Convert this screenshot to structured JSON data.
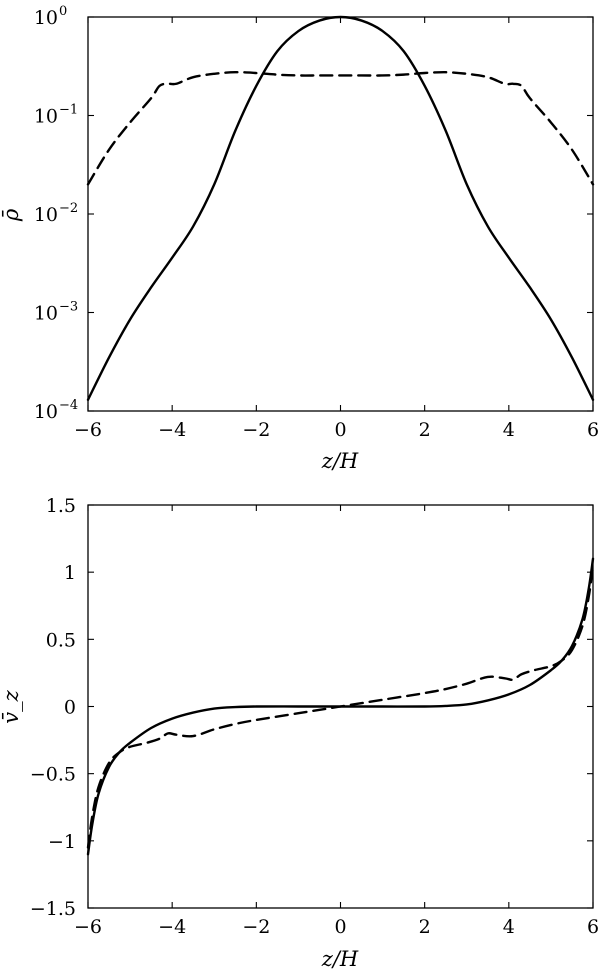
{
  "chart_data": [
    {
      "type": "line",
      "xlabel": "z/H",
      "ylabel": "ρ̄",
      "xlim": [
        -6,
        6
      ],
      "ylim": [
        0.0001,
        1
      ],
      "yscale": "log",
      "grid": false,
      "xticks": [
        -6,
        -4,
        -2,
        0,
        2,
        4,
        6
      ],
      "xtick_labels": [
        "−6",
        "−4",
        "−2",
        "0",
        "2",
        "4",
        "6"
      ],
      "yticks": [
        0.0001,
        0.001,
        0.01,
        0.1,
        1
      ],
      "ytick_mantissa": [
        "10",
        "10",
        "10",
        "10",
        "10"
      ],
      "ytick_exponents": [
        "−4",
        "−3",
        "−2",
        "−1",
        "0"
      ],
      "series": [
        {
          "style": "solid",
          "color": "#000000",
          "x": [
            -6,
            -5.5,
            -5,
            -4.5,
            -4,
            -3.5,
            -3,
            -2.5,
            -2,
            -1.5,
            -1,
            -0.5,
            0,
            0.5,
            1,
            1.5,
            2,
            2.5,
            3,
            3.5,
            4,
            4.5,
            5,
            5.5,
            6
          ],
          "y": [
            0.00013,
            0.00035,
            0.00085,
            0.0018,
            0.0036,
            0.0075,
            0.02,
            0.07,
            0.2,
            0.45,
            0.72,
            0.92,
            1.0,
            0.92,
            0.72,
            0.45,
            0.2,
            0.07,
            0.02,
            0.0075,
            0.0036,
            0.0018,
            0.00085,
            0.00035,
            0.00013
          ]
        },
        {
          "style": "dashed",
          "color": "#000000",
          "x": [
            -6,
            -5.5,
            -5,
            -4.5,
            -4.3,
            -4.1,
            -3.9,
            -3.5,
            -3,
            -2.5,
            -2,
            -1.5,
            -1,
            -0.5,
            0,
            0.5,
            1,
            1.5,
            2,
            2.5,
            3,
            3.5,
            3.9,
            4.1,
            4.3,
            4.5,
            5,
            5.5,
            6
          ],
          "y": [
            0.02,
            0.045,
            0.085,
            0.15,
            0.2,
            0.21,
            0.21,
            0.245,
            0.265,
            0.275,
            0.27,
            0.26,
            0.255,
            0.255,
            0.255,
            0.255,
            0.255,
            0.26,
            0.27,
            0.275,
            0.265,
            0.245,
            0.21,
            0.21,
            0.2,
            0.15,
            0.085,
            0.045,
            0.02
          ]
        }
      ]
    },
    {
      "type": "line",
      "xlabel": "z/H",
      "ylabel": "v̄_z",
      "xlim": [
        -6,
        6
      ],
      "ylim": [
        -1.5,
        1.5
      ],
      "yscale": "linear",
      "grid": false,
      "xticks": [
        -6,
        -4,
        -2,
        0,
        2,
        4,
        6
      ],
      "xtick_labels": [
        "−6",
        "−4",
        "−2",
        "0",
        "2",
        "4",
        "6"
      ],
      "yticks": [
        -1.5,
        -1,
        -0.5,
        0,
        0.5,
        1,
        1.5
      ],
      "ytick_labels": [
        "−1.5",
        "−1",
        "−0.5",
        "0",
        "0.5",
        "1",
        "1.5"
      ],
      "series": [
        {
          "style": "solid",
          "color": "#000000",
          "x": [
            -6,
            -5.9,
            -5.75,
            -5.5,
            -5.25,
            -5,
            -4.5,
            -4,
            -3.5,
            -3,
            -2.5,
            -2,
            -1,
            0,
            1,
            2,
            2.5,
            3,
            3.5,
            4,
            4.5,
            5,
            5.25,
            5.5,
            5.75,
            5.9,
            6
          ],
          "y": [
            -1.1,
            -0.88,
            -0.65,
            -0.45,
            -0.34,
            -0.27,
            -0.16,
            -0.09,
            -0.045,
            -0.015,
            -0.004,
            0,
            0,
            0,
            0,
            0,
            0.004,
            0.015,
            0.045,
            0.09,
            0.16,
            0.27,
            0.34,
            0.45,
            0.65,
            0.88,
            1.1
          ]
        },
        {
          "style": "dashed",
          "color": "#000000",
          "x": [
            -6,
            -5.9,
            -5.75,
            -5.5,
            -5.25,
            -5,
            -4.6,
            -4.3,
            -4.1,
            -3.9,
            -3.5,
            -3,
            -2.5,
            -2,
            -1,
            0,
            1,
            2,
            2.5,
            3,
            3.5,
            3.9,
            4.1,
            4.3,
            4.6,
            5,
            5.25,
            5.5,
            5.75,
            5.9,
            6
          ],
          "y": [
            -1.05,
            -0.82,
            -0.6,
            -0.42,
            -0.34,
            -0.3,
            -0.27,
            -0.24,
            -0.2,
            -0.21,
            -0.22,
            -0.17,
            -0.13,
            -0.1,
            -0.05,
            0,
            0.05,
            0.1,
            0.13,
            0.17,
            0.22,
            0.21,
            0.2,
            0.24,
            0.27,
            0.3,
            0.34,
            0.42,
            0.6,
            0.82,
            1.05
          ]
        }
      ]
    }
  ]
}
